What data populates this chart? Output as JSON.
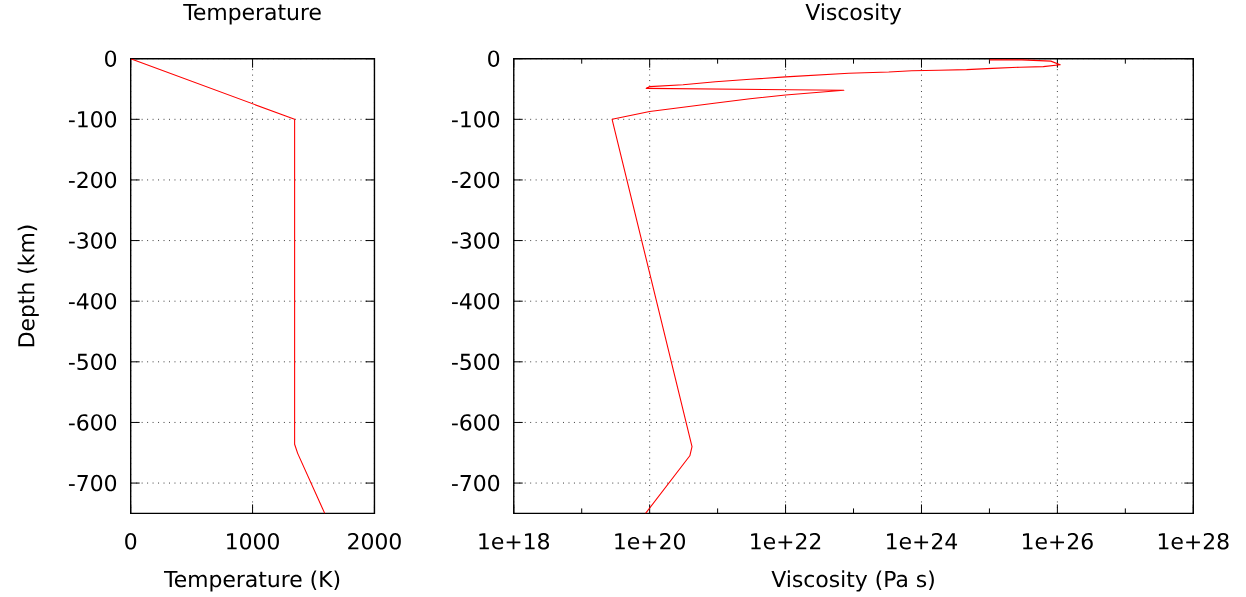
{
  "chart_data": [
    {
      "type": "line",
      "title": "Temperature",
      "xlabel": "Temperature (K)",
      "ylabel": "Depth (km)",
      "xlim": [
        0,
        2000
      ],
      "xticks": [
        0,
        1000,
        2000
      ],
      "ylim": [
        -750,
        0
      ],
      "yticks": [
        -700,
        -600,
        -500,
        -400,
        -300,
        -200,
        -100,
        0
      ],
      "grid": true,
      "series": [
        {
          "color": "#ff0000",
          "x": [
            0,
            1345,
            1345,
            1370,
            1592
          ],
          "values": [
            0,
            -100,
            -636,
            -651,
            -750
          ]
        }
      ]
    },
    {
      "type": "line",
      "title": "Viscosity",
      "xlabel": "Viscosity (Pa s)",
      "log": "x",
      "xlim": [
        1e+18,
        1e+28
      ],
      "xticks": [
        {
          "value": 1e+18,
          "label": "1e+18"
        },
        {
          "value": 1e+19,
          "label": null
        },
        {
          "value": 1e+20,
          "label": "1e+20"
        },
        {
          "value": 1e+21,
          "label": null
        },
        {
          "value": 1e+22,
          "label": "1e+22"
        },
        {
          "value": 1e+23,
          "label": null
        },
        {
          "value": 1e+24,
          "label": "1e+24"
        },
        {
          "value": 1e+25,
          "label": null
        },
        {
          "value": 1e+26,
          "label": "1e+26"
        },
        {
          "value": 1e+27,
          "label": null
        },
        {
          "value": 1e+28,
          "label": "1e+28"
        }
      ],
      "ylim": [
        -750,
        0
      ],
      "yticks": [
        -700,
        -600,
        -500,
        -400,
        -300,
        -200,
        -100,
        0
      ],
      "grid": true,
      "series": [
        {
          "color": "#ff0000",
          "x": [
            1e+25,
            3e+25,
            8e+25,
            1.1e+26,
            6.2e+25,
            2.8e+25,
            1.1e+25,
            4.6e+24,
            1.8e+24,
            7.2e+23,
            3.3e+23,
            8.5e+22,
            1e+22,
            3e+21,
            9.3e+20,
            3.1e+20,
            1e+20,
            8.9e+19,
            7.2e+22,
            1e+22,
            3e+21,
            9.5e+20,
            3.1e+20,
            1e+20,
            2.8e+19,
            4.2e+20,
            3.9e+20,
            8.7e+19
          ],
          "values": [
            -2,
            -2,
            -4,
            -10,
            -13,
            -14,
            -16,
            -18,
            -19,
            -20,
            -22,
            -24,
            -30,
            -34,
            -38,
            -43,
            -46,
            -49,
            -52,
            -60,
            -66,
            -73,
            -80,
            -87,
            -100,
            -640,
            -655,
            -750
          ]
        }
      ]
    }
  ]
}
